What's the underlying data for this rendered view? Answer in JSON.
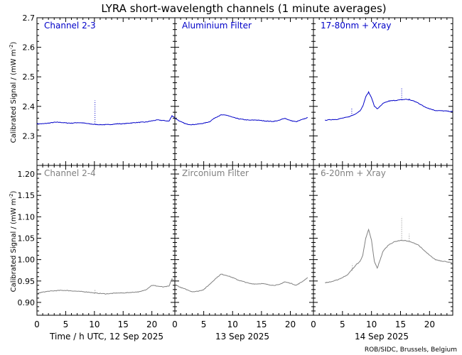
{
  "figure": {
    "title": "LYRA short-wavelength channels (1 minute averages)",
    "ylabel": "Calibrated Signal / (mW m",
    "ylabel_sup": "-2",
    "ylabel_close": ")",
    "credit": "ROB/SIDC, Brussels, Belgium",
    "day_labels": [
      "Time / h UTC, 12 Sep 2025",
      "13 Sep 2025",
      "14 Sep 2025"
    ]
  },
  "chart_data": [
    {
      "type": "line",
      "title": "Channel 2-3",
      "row": "top",
      "column": 0,
      "color": "#0000c8",
      "xlabel": "Time / h UTC, 12 Sep 2025",
      "xlim": [
        0,
        24
      ],
      "ylim": [
        2.2,
        2.7
      ],
      "yticks": [
        2.3,
        2.4,
        2.5,
        2.6,
        2.7
      ],
      "xticks": [
        0,
        5,
        10,
        15,
        20
      ],
      "series": [
        {
          "x": [
            0,
            1,
            2,
            3,
            4,
            5,
            6,
            7,
            8,
            9,
            10,
            11,
            12,
            13,
            14,
            15,
            16,
            17,
            18,
            19,
            20,
            21,
            22,
            23,
            23.5,
            24
          ],
          "y": [
            2.341,
            2.341,
            2.343,
            2.346,
            2.346,
            2.344,
            2.343,
            2.345,
            2.344,
            2.341,
            2.339,
            2.338,
            2.338,
            2.339,
            2.341,
            2.341,
            2.343,
            2.345,
            2.346,
            2.347,
            2.351,
            2.354,
            2.352,
            2.35,
            2.368,
            2.362
          ]
        }
      ],
      "spikes": [
        {
          "x": 10.1,
          "y": 2.42
        }
      ]
    },
    {
      "type": "line",
      "title": "Aluminium Filter",
      "row": "top",
      "column": 1,
      "color": "#0000c8",
      "xlabel": "13 Sep 2025",
      "xlim": [
        0,
        24
      ],
      "ylim": [
        2.2,
        2.7
      ],
      "xticks": [
        0,
        5,
        10,
        15,
        20
      ],
      "series": [
        {
          "x": [
            0,
            1,
            2,
            3,
            4,
            5,
            6,
            7,
            8,
            9,
            10,
            11,
            12,
            13,
            14,
            15,
            16,
            17,
            18,
            19,
            20,
            21,
            22,
            23
          ],
          "y": [
            2.36,
            2.348,
            2.34,
            2.338,
            2.34,
            2.343,
            2.348,
            2.362,
            2.371,
            2.37,
            2.363,
            2.358,
            2.355,
            2.353,
            2.354,
            2.352,
            2.35,
            2.349,
            2.352,
            2.36,
            2.352,
            2.348,
            2.355,
            2.362
          ]
        }
      ],
      "spikes": []
    },
    {
      "type": "line",
      "title": "17-80nm + Xray",
      "row": "top",
      "column": 2,
      "color": "#0000c8",
      "xlabel": "14 Sep 2025",
      "xlim": [
        0,
        24
      ],
      "ylim": [
        2.2,
        2.7
      ],
      "xticks": [
        0,
        5,
        10,
        15,
        20
      ],
      "series": [
        {
          "x": [
            2,
            3,
            4,
            5,
            6,
            6.5,
            7,
            7.5,
            8,
            8.5,
            9,
            9.5,
            10,
            10.5,
            11,
            11.5,
            12,
            13,
            14,
            15,
            16,
            17,
            18,
            19,
            20,
            21,
            22,
            23,
            24
          ],
          "y": [
            2.353,
            2.355,
            2.356,
            2.36,
            2.364,
            2.368,
            2.372,
            2.378,
            2.385,
            2.4,
            2.432,
            2.448,
            2.43,
            2.4,
            2.392,
            2.4,
            2.41,
            2.418,
            2.42,
            2.422,
            2.424,
            2.42,
            2.412,
            2.4,
            2.392,
            2.386,
            2.385,
            2.384,
            2.382
          ]
        }
      ],
      "spikes": [
        {
          "x": 6.6,
          "y": 2.392
        },
        {
          "x": 15.2,
          "y": 2.462
        },
        {
          "x": 16.5,
          "y": 2.43
        }
      ]
    },
    {
      "type": "line",
      "title": "Channel 2-4",
      "row": "bottom",
      "column": 0,
      "color": "#808080",
      "xlabel": "Time / h UTC, 12 Sep 2025",
      "xlim": [
        0,
        24
      ],
      "ylim": [
        0.87,
        1.22
      ],
      "yticks": [
        0.9,
        0.95,
        1.0,
        1.05,
        1.1,
        1.15,
        1.2
      ],
      "xticks": [
        0,
        5,
        10,
        15,
        20
      ],
      "series": [
        {
          "x": [
            0,
            1,
            2,
            3,
            4,
            5,
            6,
            7,
            8,
            9,
            10,
            11,
            12,
            13,
            14,
            15,
            16,
            17,
            18,
            19,
            20,
            21,
            22,
            23,
            23.5,
            24
          ],
          "y": [
            0.921,
            0.924,
            0.926,
            0.927,
            0.928,
            0.928,
            0.927,
            0.926,
            0.925,
            0.924,
            0.922,
            0.921,
            0.92,
            0.921,
            0.922,
            0.922,
            0.923,
            0.924,
            0.925,
            0.93,
            0.94,
            0.938,
            0.936,
            0.938,
            0.955,
            0.948
          ]
        }
      ],
      "spikes": [
        {
          "x": 10.1,
          "y": 0.93
        }
      ]
    },
    {
      "type": "line",
      "title": "Zirconium Filter",
      "row": "bottom",
      "column": 1,
      "color": "#808080",
      "xlabel": "13 Sep 2025",
      "xlim": [
        0,
        24
      ],
      "ylim": [
        0.87,
        1.22
      ],
      "xticks": [
        0,
        5,
        10,
        15,
        20
      ],
      "series": [
        {
          "x": [
            0,
            1,
            2,
            3,
            4,
            5,
            6,
            7,
            8,
            9,
            10,
            11,
            12,
            13,
            14,
            15,
            16,
            17,
            18,
            19,
            20,
            21,
            22,
            23
          ],
          "y": [
            0.942,
            0.935,
            0.93,
            0.925,
            0.926,
            0.93,
            0.942,
            0.955,
            0.966,
            0.963,
            0.958,
            0.952,
            0.948,
            0.944,
            0.943,
            0.944,
            0.942,
            0.94,
            0.941,
            0.948,
            0.945,
            0.94,
            0.948,
            0.958
          ]
        }
      ],
      "spikes": []
    },
    {
      "type": "line",
      "title": "6-20nm + Xray",
      "row": "bottom",
      "column": 2,
      "color": "#808080",
      "xlabel": "14 Sep 2025",
      "xlim": [
        0,
        24
      ],
      "ylim": [
        0.87,
        1.22
      ],
      "xticks": [
        0,
        5,
        10,
        15,
        20
      ],
      "series": [
        {
          "x": [
            2,
            3,
            4,
            5,
            6,
            6.5,
            7,
            7.5,
            8,
            8.5,
            9,
            9.5,
            10,
            10.5,
            11,
            11.5,
            12,
            13,
            14,
            15,
            16,
            17,
            18,
            19,
            20,
            21,
            22,
            23,
            24
          ],
          "y": [
            0.946,
            0.948,
            0.952,
            0.958,
            0.966,
            0.975,
            0.982,
            0.99,
            0.995,
            1.01,
            1.05,
            1.07,
            1.045,
            0.995,
            0.98,
            1.0,
            1.02,
            1.035,
            1.042,
            1.045,
            1.044,
            1.04,
            1.035,
            1.022,
            1.01,
            1.0,
            0.997,
            0.995,
            0.992
          ]
        }
      ],
      "spikes": [
        {
          "x": 6.7,
          "y": 0.99
        },
        {
          "x": 15.2,
          "y": 1.1
        },
        {
          "x": 16.5,
          "y": 1.06
        }
      ]
    }
  ]
}
